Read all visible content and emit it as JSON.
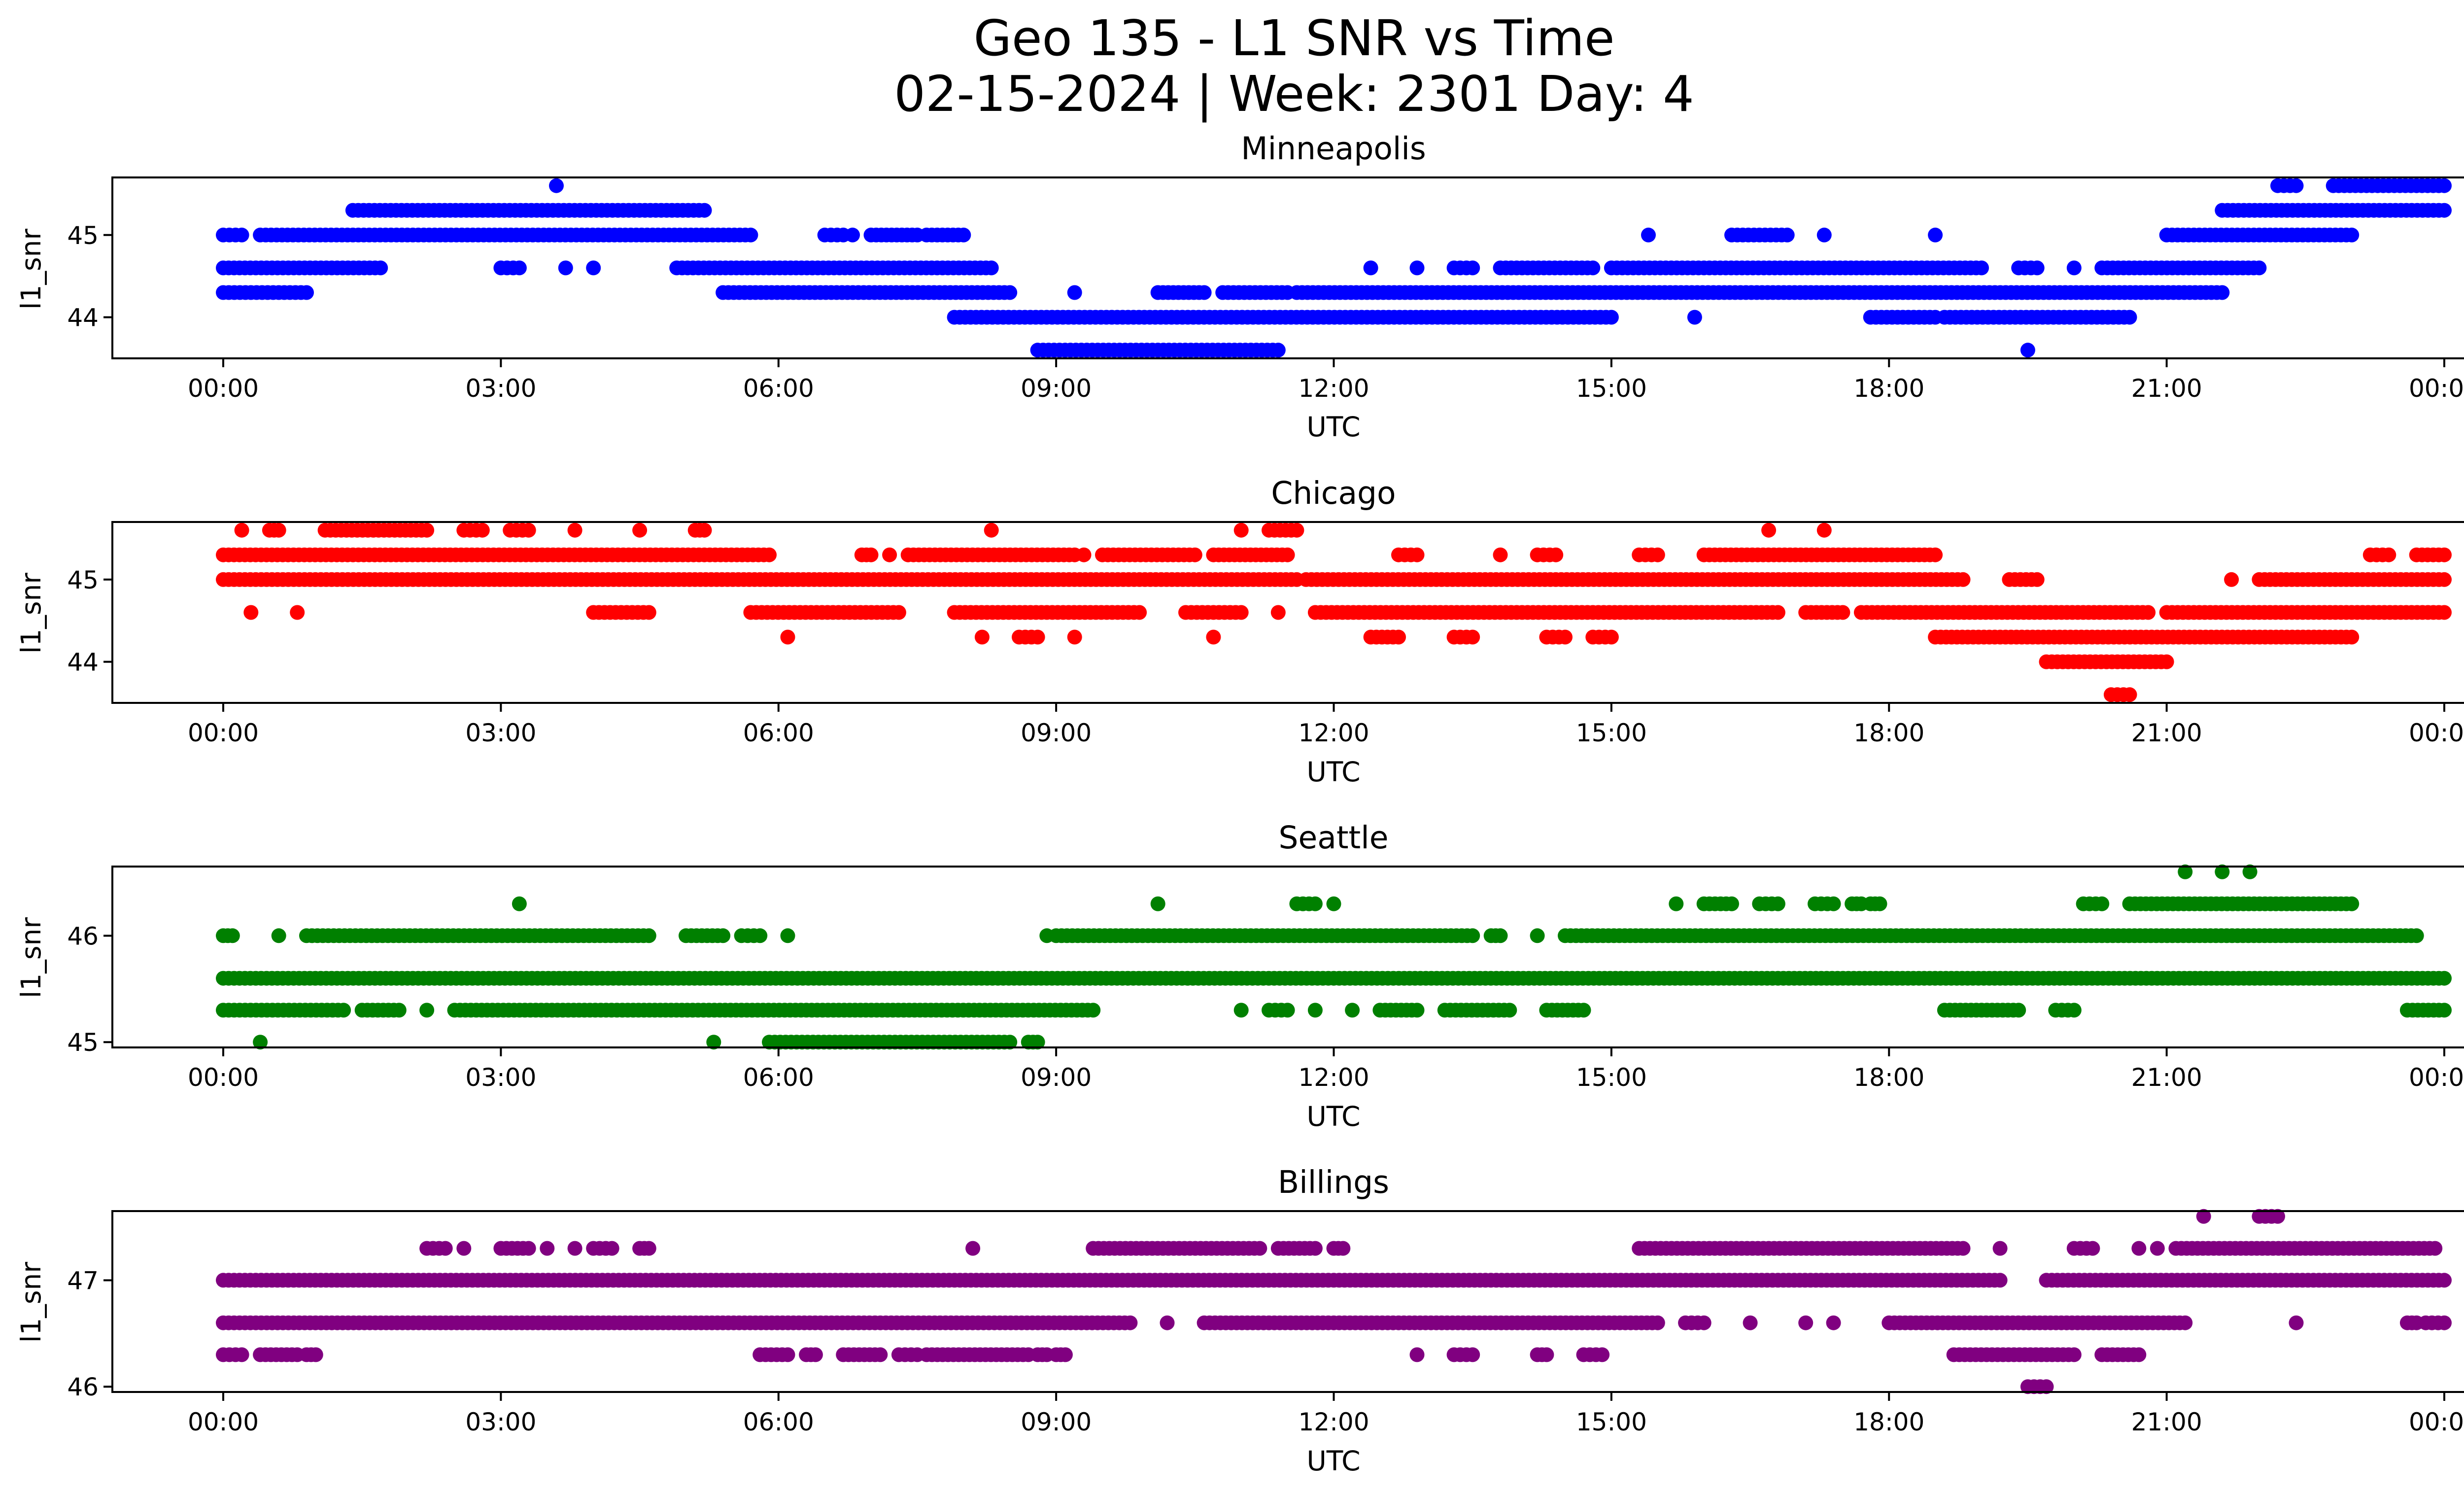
{
  "figure": {
    "title_line1": "Geo 135 - L1 SNR vs Time",
    "title_line2": "02-15-2024 | Week: 2301 Day: 4"
  },
  "chart_data": [
    {
      "type": "scatter",
      "title": "Minneapolis",
      "xlabel": "UTC",
      "ylabel": "l1_snr",
      "color": "#0000ff",
      "xlim": [
        "00:00",
        "24:00"
      ],
      "x_ticks": [
        "00:00",
        "03:00",
        "06:00",
        "09:00",
        "12:00",
        "15:00",
        "18:00",
        "21:00",
        "00:00"
      ],
      "ylim": [
        43.5,
        45.7
      ],
      "y_ticks": [
        44,
        45
      ],
      "grid": false,
      "series": [
        {
          "y": 45.6,
          "ranges": [
            [
              3.6,
              3.6
            ],
            [
              22.2,
              22.4
            ],
            [
              22.8,
              24.0
            ]
          ]
        },
        {
          "y": 45.3,
          "ranges": [
            [
              1.4,
              5.2
            ],
            [
              21.6,
              24.0
            ]
          ]
        },
        {
          "y": 45.0,
          "ranges": [
            [
              0.0,
              0.2
            ],
            [
              0.4,
              5.7
            ],
            [
              6.5,
              6.7
            ],
            [
              6.8,
              6.8
            ],
            [
              7.0,
              7.5
            ],
            [
              7.6,
              8.0
            ],
            [
              15.4,
              15.4
            ],
            [
              16.3,
              16.9
            ],
            [
              17.3,
              17.3
            ],
            [
              18.5,
              18.5
            ],
            [
              21.0,
              23.0
            ]
          ]
        },
        {
          "y": 44.6,
          "ranges": [
            [
              0.0,
              1.7
            ],
            [
              3.0,
              3.2
            ],
            [
              3.7,
              3.7
            ],
            [
              4.0,
              4.0
            ],
            [
              4.9,
              8.3
            ],
            [
              12.4,
              12.4
            ],
            [
              12.9,
              12.9
            ],
            [
              13.3,
              13.5
            ],
            [
              13.8,
              14.8
            ],
            [
              15.0,
              19.0
            ],
            [
              19.4,
              19.6
            ],
            [
              20.0,
              20.0
            ],
            [
              20.3,
              22.0
            ]
          ]
        },
        {
          "y": 44.3,
          "ranges": [
            [
              0.0,
              0.9
            ],
            [
              5.4,
              8.5
            ],
            [
              9.2,
              9.2
            ],
            [
              10.1,
              10.6
            ],
            [
              10.8,
              11.5
            ],
            [
              11.6,
              21.6
            ]
          ]
        },
        {
          "y": 44.0,
          "ranges": [
            [
              7.9,
              15.0
            ],
            [
              15.9,
              15.9
            ],
            [
              17.8,
              18.5
            ],
            [
              18.6,
              20.6
            ]
          ]
        },
        {
          "y": 43.6,
          "ranges": [
            [
              8.8,
              11.4
            ],
            [
              19.5,
              19.5
            ]
          ]
        }
      ]
    },
    {
      "type": "scatter",
      "title": "Chicago",
      "xlabel": "UTC",
      "ylabel": "l1_snr",
      "color": "#ff0000",
      "xlim": [
        "00:00",
        "24:00"
      ],
      "x_ticks": [
        "00:00",
        "03:00",
        "06:00",
        "09:00",
        "12:00",
        "15:00",
        "18:00",
        "21:00",
        "00:00"
      ],
      "ylim": [
        43.5,
        45.7
      ],
      "y_ticks": [
        44,
        45
      ],
      "grid": false,
      "series": [
        {
          "y": 45.6,
          "ranges": [
            [
              0.2,
              0.2
            ],
            [
              0.5,
              0.6
            ],
            [
              1.1,
              2.2
            ],
            [
              2.6,
              2.8
            ],
            [
              3.1,
              3.3
            ],
            [
              3.8,
              3.8
            ],
            [
              4.5,
              4.5
            ],
            [
              5.1,
              5.2
            ],
            [
              8.3,
              8.3
            ],
            [
              11.0,
              11.0
            ],
            [
              11.3,
              11.6
            ],
            [
              16.7,
              16.7
            ],
            [
              17.3,
              17.3
            ]
          ]
        },
        {
          "y": 45.3,
          "ranges": [
            [
              0.0,
              5.9
            ],
            [
              6.9,
              7.0
            ],
            [
              7.2,
              7.2
            ],
            [
              7.4,
              9.2
            ],
            [
              9.3,
              9.3
            ],
            [
              9.5,
              10.5
            ],
            [
              10.7,
              11.5
            ],
            [
              12.7,
              12.9
            ],
            [
              13.8,
              13.8
            ],
            [
              14.2,
              14.4
            ],
            [
              15.3,
              15.5
            ],
            [
              16.0,
              18.5
            ],
            [
              23.2,
              23.4
            ],
            [
              23.7,
              24.0
            ]
          ]
        },
        {
          "y": 45.0,
          "ranges": [
            [
              0.0,
              11.6
            ],
            [
              11.7,
              18.8
            ],
            [
              19.3,
              19.6
            ],
            [
              21.7,
              21.7
            ],
            [
              22.0,
              24.0
            ]
          ]
        },
        {
          "y": 44.6,
          "ranges": [
            [
              0.3,
              0.3
            ],
            [
              0.8,
              0.8
            ],
            [
              4.0,
              4.6
            ],
            [
              5.7,
              7.3
            ],
            [
              7.9,
              9.9
            ],
            [
              10.4,
              11.0
            ],
            [
              11.4,
              11.4
            ],
            [
              11.8,
              16.8
            ],
            [
              17.1,
              17.5
            ],
            [
              17.7,
              20.8
            ],
            [
              21.0,
              24.0
            ]
          ]
        },
        {
          "y": 44.3,
          "ranges": [
            [
              6.1,
              6.1
            ],
            [
              8.2,
              8.2
            ],
            [
              8.6,
              8.8
            ],
            [
              9.2,
              9.2
            ],
            [
              10.7,
              10.7
            ],
            [
              12.4,
              12.7
            ],
            [
              13.3,
              13.5
            ],
            [
              14.3,
              14.5
            ],
            [
              14.8,
              15.0
            ],
            [
              18.5,
              23.0
            ]
          ]
        },
        {
          "y": 44.0,
          "ranges": [
            [
              19.7,
              21.0
            ]
          ]
        },
        {
          "y": 43.6,
          "ranges": [
            [
              20.4,
              20.6
            ]
          ]
        }
      ]
    },
    {
      "type": "scatter",
      "title": "Seattle",
      "xlabel": "UTC",
      "ylabel": "l1_snr",
      "color": "#008000",
      "xlim": [
        "00:00",
        "24:00"
      ],
      "x_ticks": [
        "00:00",
        "03:00",
        "06:00",
        "09:00",
        "12:00",
        "15:00",
        "18:00",
        "21:00",
        "00:00"
      ],
      "ylim": [
        44.95,
        46.65
      ],
      "y_ticks": [
        45,
        46
      ],
      "grid": false,
      "series": [
        {
          "y": 46.6,
          "ranges": [
            [
              21.2,
              21.2
            ],
            [
              21.6,
              21.6
            ],
            [
              21.9,
              21.9
            ]
          ]
        },
        {
          "y": 46.3,
          "ranges": [
            [
              3.2,
              3.2
            ],
            [
              10.1,
              10.1
            ],
            [
              11.6,
              11.8
            ],
            [
              12.0,
              12.0
            ],
            [
              15.7,
              15.7
            ],
            [
              16.0,
              16.3
            ],
            [
              16.6,
              16.8
            ],
            [
              17.2,
              17.4
            ],
            [
              17.6,
              17.7
            ],
            [
              17.8,
              17.9
            ],
            [
              20.1,
              20.3
            ],
            [
              20.6,
              23.0
            ]
          ]
        },
        {
          "y": 46.0,
          "ranges": [
            [
              0.0,
              0.1
            ],
            [
              0.6,
              0.6
            ],
            [
              0.9,
              4.6
            ],
            [
              5.0,
              5.4
            ],
            [
              5.6,
              5.8
            ],
            [
              6.1,
              6.1
            ],
            [
              8.9,
              8.9
            ],
            [
              9.0,
              13.5
            ],
            [
              13.7,
              13.8
            ],
            [
              14.2,
              14.2
            ],
            [
              14.5,
              23.7
            ]
          ]
        },
        {
          "y": 45.6,
          "ranges": [
            [
              0.0,
              24.0
            ]
          ]
        },
        {
          "y": 45.3,
          "ranges": [
            [
              0.0,
              1.3
            ],
            [
              1.5,
              1.9
            ],
            [
              2.2,
              2.2
            ],
            [
              2.5,
              9.4
            ],
            [
              11.0,
              11.0
            ],
            [
              11.3,
              11.5
            ],
            [
              11.8,
              11.8
            ],
            [
              12.2,
              12.2
            ],
            [
              12.5,
              12.9
            ],
            [
              13.2,
              13.9
            ],
            [
              14.3,
              14.7
            ],
            [
              18.6,
              19.4
            ],
            [
              19.8,
              20.0
            ],
            [
              23.6,
              24.0
            ]
          ]
        },
        {
          "y": 45.0,
          "ranges": [
            [
              0.4,
              0.4
            ],
            [
              5.3,
              5.3
            ],
            [
              5.9,
              8.5
            ],
            [
              8.7,
              8.8
            ]
          ]
        }
      ]
    },
    {
      "type": "scatter",
      "title": "Billings",
      "xlabel": "UTC",
      "ylabel": "l1_snr",
      "color": "#800080",
      "xlim": [
        "00:00",
        "24:00"
      ],
      "x_ticks": [
        "00:00",
        "03:00",
        "06:00",
        "09:00",
        "12:00",
        "15:00",
        "18:00",
        "21:00",
        "00:00"
      ],
      "ylim": [
        45.95,
        47.65
      ],
      "y_ticks": [
        46,
        47
      ],
      "grid": false,
      "series": [
        {
          "y": 47.6,
          "ranges": [
            [
              21.4,
              21.4
            ],
            [
              22.0,
              22.2
            ]
          ]
        },
        {
          "y": 47.3,
          "ranges": [
            [
              2.2,
              2.4
            ],
            [
              2.6,
              2.6
            ],
            [
              3.0,
              3.3
            ],
            [
              3.5,
              3.5
            ],
            [
              3.8,
              3.8
            ],
            [
              4.0,
              4.2
            ],
            [
              4.5,
              4.6
            ],
            [
              8.1,
              8.1
            ],
            [
              9.4,
              11.2
            ],
            [
              11.4,
              11.8
            ],
            [
              12.0,
              12.1
            ],
            [
              15.3,
              18.8
            ],
            [
              19.2,
              19.2
            ],
            [
              20.0,
              20.2
            ],
            [
              20.7,
              20.7
            ],
            [
              20.9,
              20.9
            ],
            [
              21.1,
              23.9
            ]
          ]
        },
        {
          "y": 47.0,
          "ranges": [
            [
              0.0,
              19.2
            ],
            [
              19.7,
              24.0
            ]
          ]
        },
        {
          "y": 46.6,
          "ranges": [
            [
              0.0,
              9.8
            ],
            [
              10.2,
              10.2
            ],
            [
              10.6,
              15.5
            ],
            [
              15.8,
              16.0
            ],
            [
              16.5,
              16.5
            ],
            [
              17.1,
              17.1
            ],
            [
              17.4,
              17.4
            ],
            [
              18.0,
              21.2
            ],
            [
              22.4,
              22.4
            ],
            [
              23.6,
              23.7
            ],
            [
              23.8,
              24.0
            ]
          ]
        },
        {
          "y": 46.3,
          "ranges": [
            [
              0.0,
              0.2
            ],
            [
              0.4,
              0.8
            ],
            [
              0.9,
              1.0
            ],
            [
              5.8,
              6.1
            ],
            [
              6.3,
              6.4
            ],
            [
              6.7,
              7.1
            ],
            [
              7.3,
              7.5
            ],
            [
              7.6,
              8.7
            ],
            [
              8.8,
              8.9
            ],
            [
              9.0,
              9.1
            ],
            [
              12.9,
              12.9
            ],
            [
              13.3,
              13.5
            ],
            [
              14.2,
              14.3
            ],
            [
              14.7,
              14.9
            ],
            [
              18.7,
              20.0
            ],
            [
              20.3,
              20.7
            ]
          ]
        },
        {
          "y": 46.0,
          "ranges": [
            [
              19.5,
              19.7
            ]
          ]
        }
      ]
    }
  ]
}
